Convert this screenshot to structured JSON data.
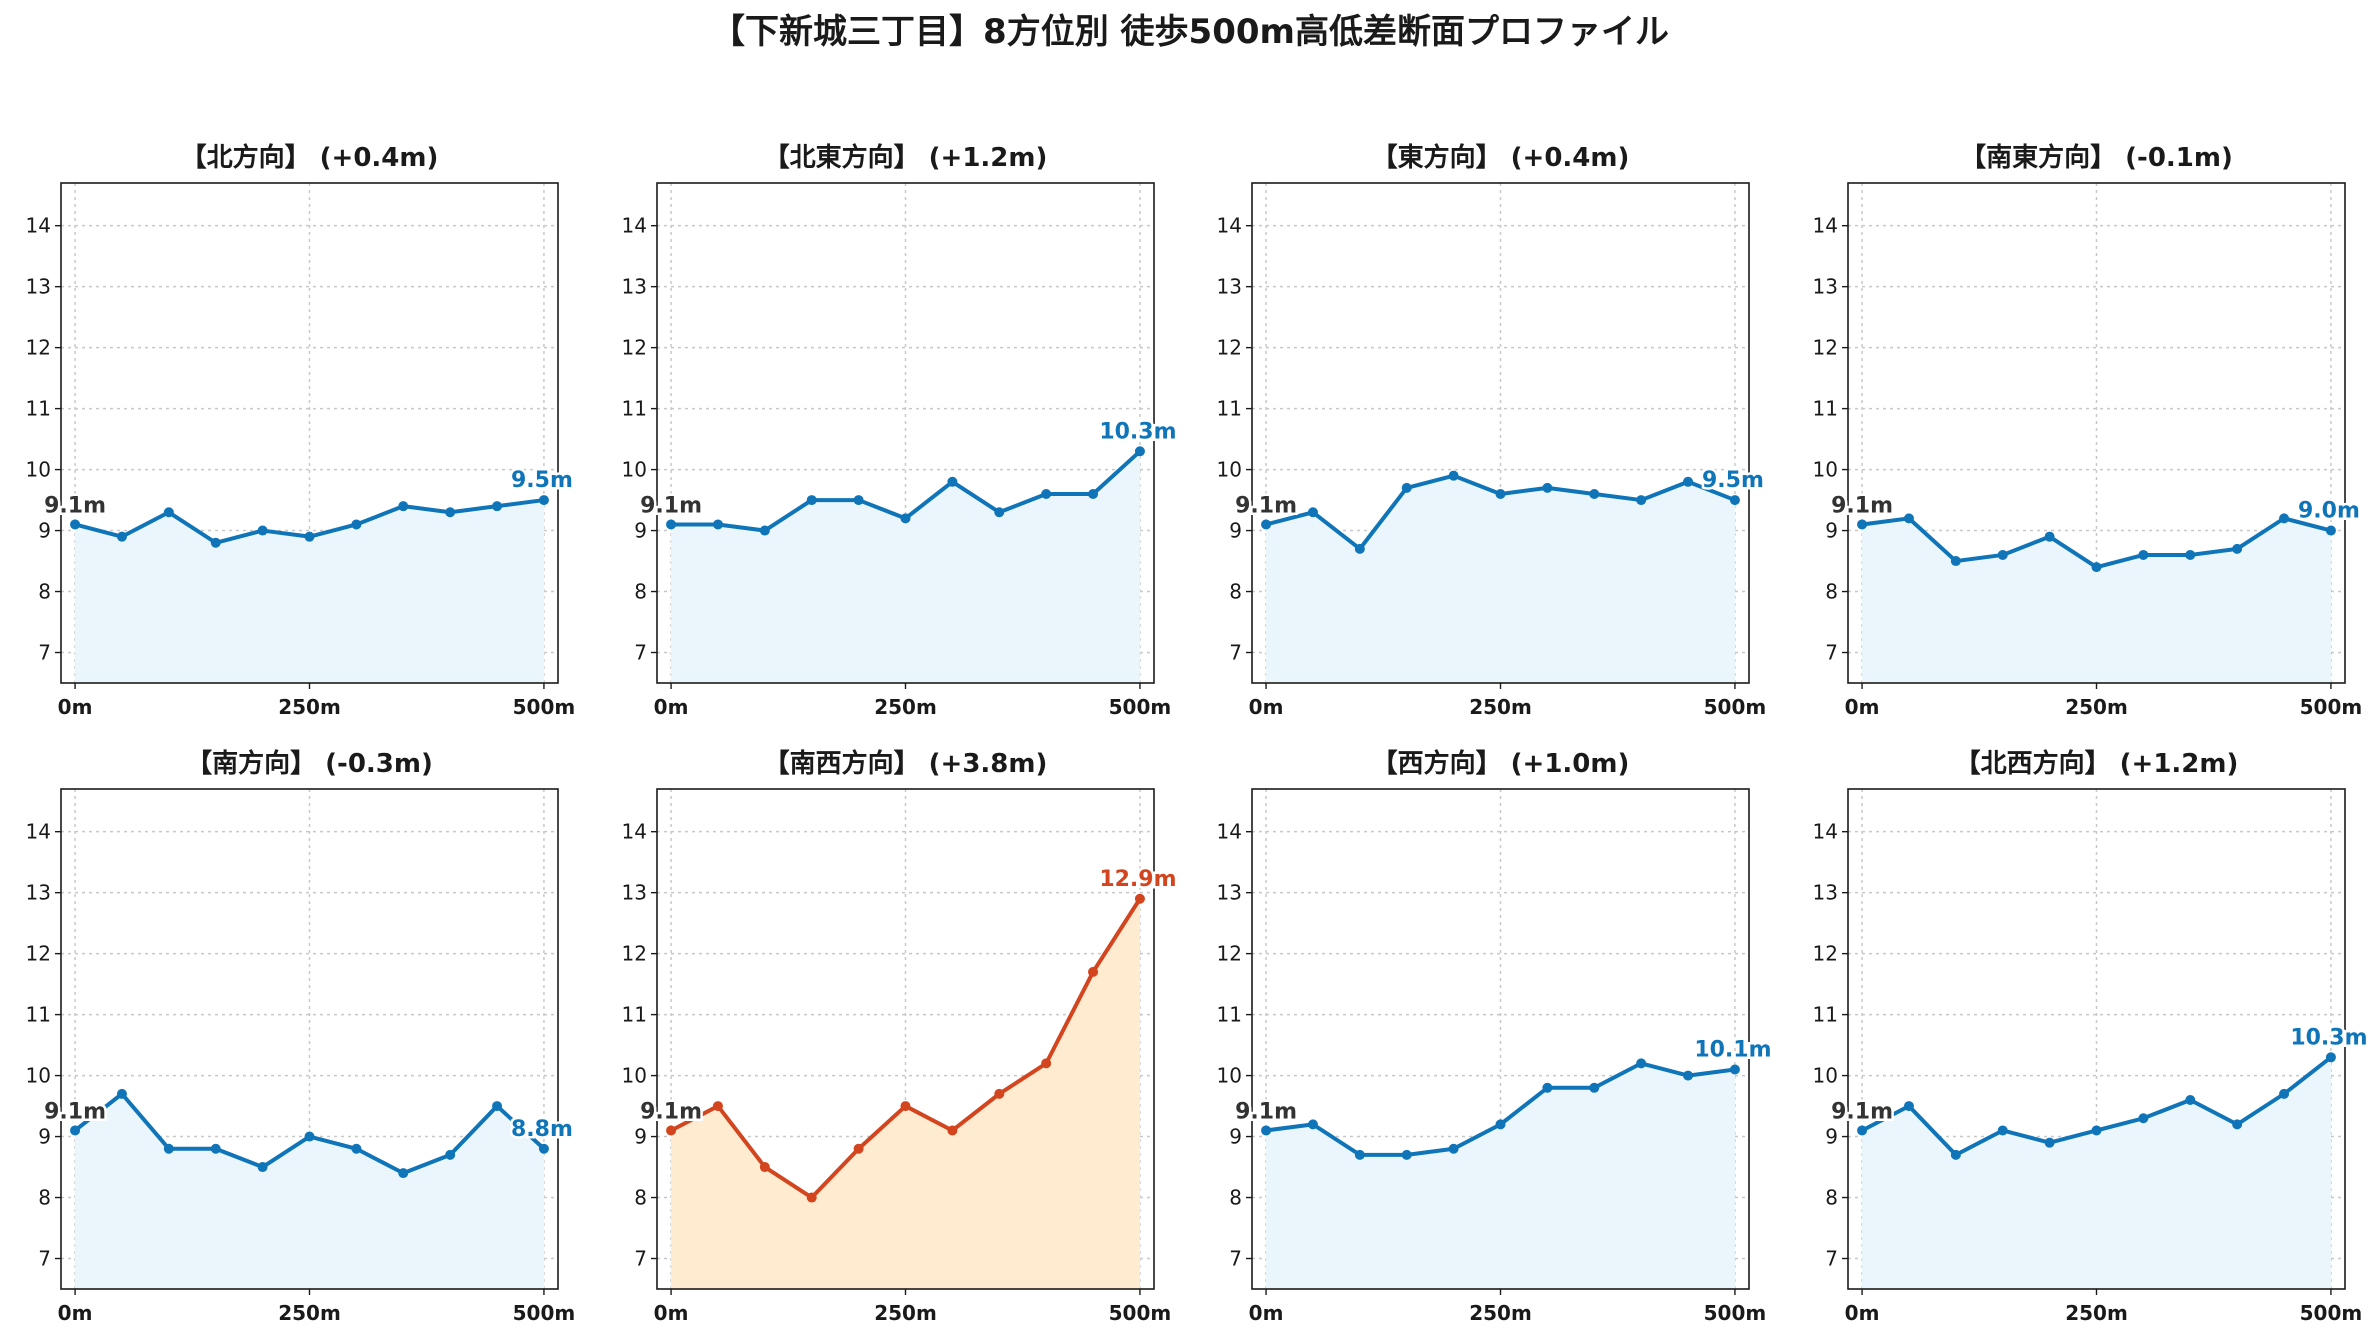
{
  "title": "【下新城三丁目】8方位別 徒歩500m高低差断面プロファイル",
  "colors": {
    "normal_line": "#0f75b8",
    "normal_fill": "#eaf6fb",
    "highlight_line": "#d2451e",
    "highlight_fill": "#ffecd0",
    "start_label": "#333333"
  },
  "chart_data": [
    {
      "type": "line",
      "title": "【北方向】 (+0.4m)",
      "x": [
        0,
        50,
        100,
        150,
        200,
        250,
        300,
        350,
        400,
        450,
        500
      ],
      "xticks": [
        0,
        250,
        500
      ],
      "xtick_labels": [
        "0m",
        "250m",
        "500m"
      ],
      "y": [
        9.1,
        8.9,
        9.3,
        8.8,
        9.0,
        8.9,
        9.1,
        9.4,
        9.3,
        9.4,
        9.5
      ],
      "xlim": [
        -15,
        515
      ],
      "ylim": [
        6.5,
        14.7
      ],
      "yticks": [
        7,
        8,
        9,
        10,
        11,
        12,
        13,
        14
      ],
      "start_label": "9.1m",
      "end_label": "9.5m",
      "grid": true,
      "highlight": false
    },
    {
      "type": "line",
      "title": "【北東方向】 (+1.2m)",
      "x": [
        0,
        50,
        100,
        150,
        200,
        250,
        300,
        350,
        400,
        450,
        500
      ],
      "xticks": [
        0,
        250,
        500
      ],
      "xtick_labels": [
        "0m",
        "250m",
        "500m"
      ],
      "y": [
        9.1,
        9.1,
        9.0,
        9.5,
        9.5,
        9.2,
        9.8,
        9.3,
        9.6,
        9.6,
        10.3
      ],
      "xlim": [
        -15,
        515
      ],
      "ylim": [
        6.5,
        14.7
      ],
      "yticks": [
        7,
        8,
        9,
        10,
        11,
        12,
        13,
        14
      ],
      "start_label": "9.1m",
      "end_label": "10.3m",
      "grid": true,
      "highlight": false
    },
    {
      "type": "line",
      "title": "【東方向】 (+0.4m)",
      "x": [
        0,
        50,
        100,
        150,
        200,
        250,
        300,
        350,
        400,
        450,
        500
      ],
      "xticks": [
        0,
        250,
        500
      ],
      "xtick_labels": [
        "0m",
        "250m",
        "500m"
      ],
      "y": [
        9.1,
        9.3,
        8.7,
        9.7,
        9.9,
        9.6,
        9.7,
        9.6,
        9.5,
        9.8,
        9.5
      ],
      "xlim": [
        -15,
        515
      ],
      "ylim": [
        6.5,
        14.7
      ],
      "yticks": [
        7,
        8,
        9,
        10,
        11,
        12,
        13,
        14
      ],
      "start_label": "9.1m",
      "end_label": "9.5m",
      "grid": true,
      "highlight": false
    },
    {
      "type": "line",
      "title": "【南東方向】 (-0.1m)",
      "x": [
        0,
        50,
        100,
        150,
        200,
        250,
        300,
        350,
        400,
        450,
        500
      ],
      "xticks": [
        0,
        250,
        500
      ],
      "xtick_labels": [
        "0m",
        "250m",
        "500m"
      ],
      "y": [
        9.1,
        9.2,
        8.5,
        8.6,
        8.9,
        8.4,
        8.6,
        8.6,
        8.7,
        9.2,
        9.0
      ],
      "xlim": [
        -15,
        515
      ],
      "ylim": [
        6.5,
        14.7
      ],
      "yticks": [
        7,
        8,
        9,
        10,
        11,
        12,
        13,
        14
      ],
      "start_label": "9.1m",
      "end_label": "9.0m",
      "grid": true,
      "highlight": false
    },
    {
      "type": "line",
      "title": "【南方向】 (-0.3m)",
      "x": [
        0,
        50,
        100,
        150,
        200,
        250,
        300,
        350,
        400,
        450,
        500
      ],
      "xticks": [
        0,
        250,
        500
      ],
      "xtick_labels": [
        "0m",
        "250m",
        "500m"
      ],
      "y": [
        9.1,
        9.7,
        8.8,
        8.8,
        8.5,
        9.0,
        8.8,
        8.4,
        8.7,
        9.5,
        8.8
      ],
      "xlim": [
        -15,
        515
      ],
      "ylim": [
        6.5,
        14.7
      ],
      "yticks": [
        7,
        8,
        9,
        10,
        11,
        12,
        13,
        14
      ],
      "start_label": "9.1m",
      "end_label": "8.8m",
      "grid": true,
      "highlight": false
    },
    {
      "type": "line",
      "title": "【南西方向】 (+3.8m)",
      "x": [
        0,
        50,
        100,
        150,
        200,
        250,
        300,
        350,
        400,
        450,
        500
      ],
      "xticks": [
        0,
        250,
        500
      ],
      "xtick_labels": [
        "0m",
        "250m",
        "500m"
      ],
      "y": [
        9.1,
        9.5,
        8.5,
        8.0,
        8.8,
        9.5,
        9.1,
        9.7,
        10.2,
        11.7,
        12.9
      ],
      "xlim": [
        -15,
        515
      ],
      "ylim": [
        6.5,
        14.7
      ],
      "yticks": [
        7,
        8,
        9,
        10,
        11,
        12,
        13,
        14
      ],
      "start_label": "9.1m",
      "end_label": "12.9m",
      "grid": true,
      "highlight": true
    },
    {
      "type": "line",
      "title": "【西方向】 (+1.0m)",
      "x": [
        0,
        50,
        100,
        150,
        200,
        250,
        300,
        350,
        400,
        450,
        500
      ],
      "xticks": [
        0,
        250,
        500
      ],
      "xtick_labels": [
        "0m",
        "250m",
        "500m"
      ],
      "y": [
        9.1,
        9.2,
        8.7,
        8.7,
        8.8,
        9.2,
        9.8,
        9.8,
        10.2,
        10.0,
        10.1
      ],
      "xlim": [
        -15,
        515
      ],
      "ylim": [
        6.5,
        14.7
      ],
      "yticks": [
        7,
        8,
        9,
        10,
        11,
        12,
        13,
        14
      ],
      "start_label": "9.1m",
      "end_label": "10.1m",
      "grid": true,
      "highlight": false
    },
    {
      "type": "line",
      "title": "【北西方向】 (+1.2m)",
      "x": [
        0,
        50,
        100,
        150,
        200,
        250,
        300,
        350,
        400,
        450,
        500
      ],
      "xticks": [
        0,
        250,
        500
      ],
      "xtick_labels": [
        "0m",
        "250m",
        "500m"
      ],
      "y": [
        9.1,
        9.5,
        8.7,
        9.1,
        8.9,
        9.1,
        9.3,
        9.6,
        9.2,
        9.7,
        10.3
      ],
      "xlim": [
        -15,
        515
      ],
      "ylim": [
        6.5,
        14.7
      ],
      "yticks": [
        7,
        8,
        9,
        10,
        11,
        12,
        13,
        14
      ],
      "start_label": "9.1m",
      "end_label": "10.3m",
      "grid": true,
      "highlight": false
    }
  ]
}
